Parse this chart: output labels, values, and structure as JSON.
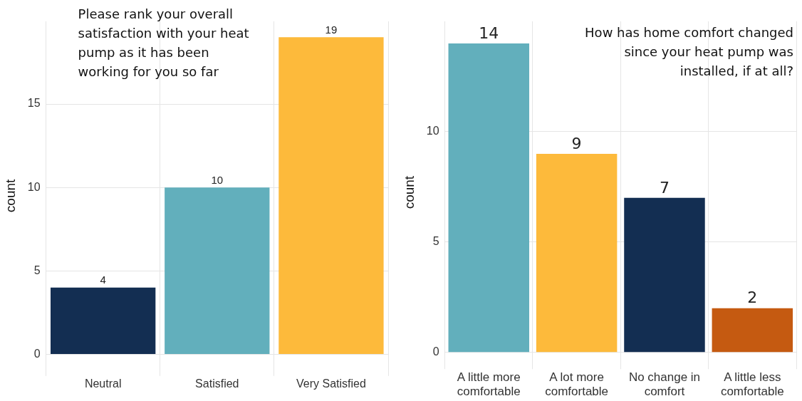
{
  "chart_data": [
    {
      "type": "bar",
      "title": "Please rank your overall satisfaction with your heat pump as it has been working for you so far",
      "ylabel": "count",
      "categories": [
        "Neutral",
        "Satisfied",
        "Very Satisfied"
      ],
      "values": [
        4,
        10,
        19
      ],
      "colors": [
        "#132e52",
        "#62afbc",
        "#fdba3b"
      ],
      "ylim": [
        -0.95,
        19.95
      ],
      "yticks": [
        0,
        5,
        10,
        15
      ],
      "grid": true,
      "data_labels": true
    },
    {
      "type": "bar",
      "title": "How has home comfort changed since your heat pump was installed, if at all?",
      "ylabel": "count",
      "categories": [
        "A little more comfortable",
        "A lot more comfortable",
        "No change in comfort",
        "A little less comfortable"
      ],
      "values": [
        14,
        9,
        7,
        2
      ],
      "colors": [
        "#62afbc",
        "#fdba3b",
        "#132e52",
        "#c55a11"
      ],
      "ylim": [
        -0.5,
        15
      ],
      "yticks": [
        0,
        5,
        10
      ],
      "grid": true,
      "data_labels": true
    }
  ]
}
